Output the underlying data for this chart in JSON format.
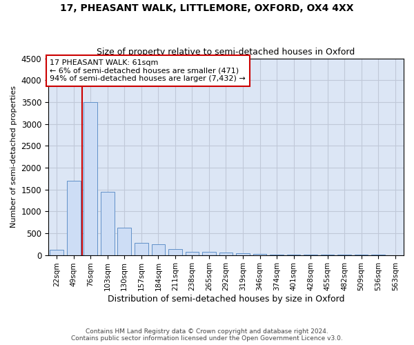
{
  "title1": "17, PHEASANT WALK, LITTLEMORE, OXFORD, OX4 4XX",
  "title2": "Size of property relative to semi-detached houses in Oxford",
  "xlabel": "Distribution of semi-detached houses by size in Oxford",
  "ylabel": "Number of semi-detached properties",
  "footnote1": "Contains HM Land Registry data © Crown copyright and database right 2024.",
  "footnote2": "Contains public sector information licensed under the Open Government Licence v3.0.",
  "annotation_title": "17 PHEASANT WALK: 61sqm",
  "annotation_line1": "← 6% of semi-detached houses are smaller (471)",
  "annotation_line2": "94% of semi-detached houses are larger (7,432) →",
  "bar_labels": [
    "22sqm",
    "49sqm",
    "76sqm",
    "103sqm",
    "130sqm",
    "157sqm",
    "184sqm",
    "211sqm",
    "238sqm",
    "265sqm",
    "292sqm",
    "319sqm",
    "346sqm",
    "374sqm",
    "401sqm",
    "428sqm",
    "455sqm",
    "482sqm",
    "509sqm",
    "536sqm",
    "563sqm"
  ],
  "bar_values": [
    120,
    1700,
    3500,
    1450,
    620,
    270,
    250,
    130,
    80,
    80,
    55,
    45,
    30,
    15,
    10,
    8,
    5,
    3,
    2,
    2,
    1
  ],
  "bar_color": "#cdddf5",
  "bar_edge_color": "#6090c8",
  "highlight_color": "#cc0000",
  "grid_color": "#c0c8d8",
  "background_color": "#dce6f5",
  "ylim": [
    0,
    4500
  ],
  "yticks": [
    0,
    500,
    1000,
    1500,
    2000,
    2500,
    3000,
    3500,
    4000,
    4500
  ],
  "red_line_x": 1.5,
  "figsize": [
    6.0,
    5.0
  ],
  "dpi": 100
}
